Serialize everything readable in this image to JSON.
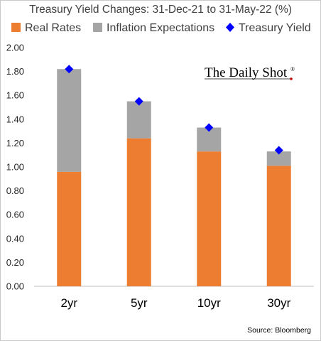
{
  "chart_data": {
    "type": "bar",
    "stacked": true,
    "title": "Treasury Yield Changes: 31-Dec-21 to 31-May-22 (%)",
    "categories": [
      "2yr",
      "5yr",
      "10yr",
      "30yr"
    ],
    "series": [
      {
        "name": "Real Rates",
        "kind": "bar",
        "color": "#ED7D31",
        "values": [
          0.96,
          1.24,
          1.13,
          1.01
        ]
      },
      {
        "name": "Inflation Expectations",
        "kind": "bar",
        "color": "#A5A5A5",
        "values": [
          0.86,
          0.31,
          0.2,
          0.12
        ]
      },
      {
        "name": "Treasury Yield",
        "kind": "marker",
        "marker": "diamond",
        "color": "#0000FF",
        "values": [
          1.82,
          1.55,
          1.33,
          1.14
        ]
      }
    ],
    "ylim": [
      0,
      2.0
    ],
    "yticks": [
      "0.00",
      "0.20",
      "0.40",
      "0.60",
      "0.80",
      "1.00",
      "1.20",
      "1.40",
      "1.60",
      "1.80",
      "2.00"
    ],
    "xlabel": "",
    "ylabel": "",
    "grid": false,
    "legend_position": "top"
  },
  "logo": {
    "text": "The Daily Shot",
    "mark": "®"
  },
  "source": "Source: Bloomberg"
}
